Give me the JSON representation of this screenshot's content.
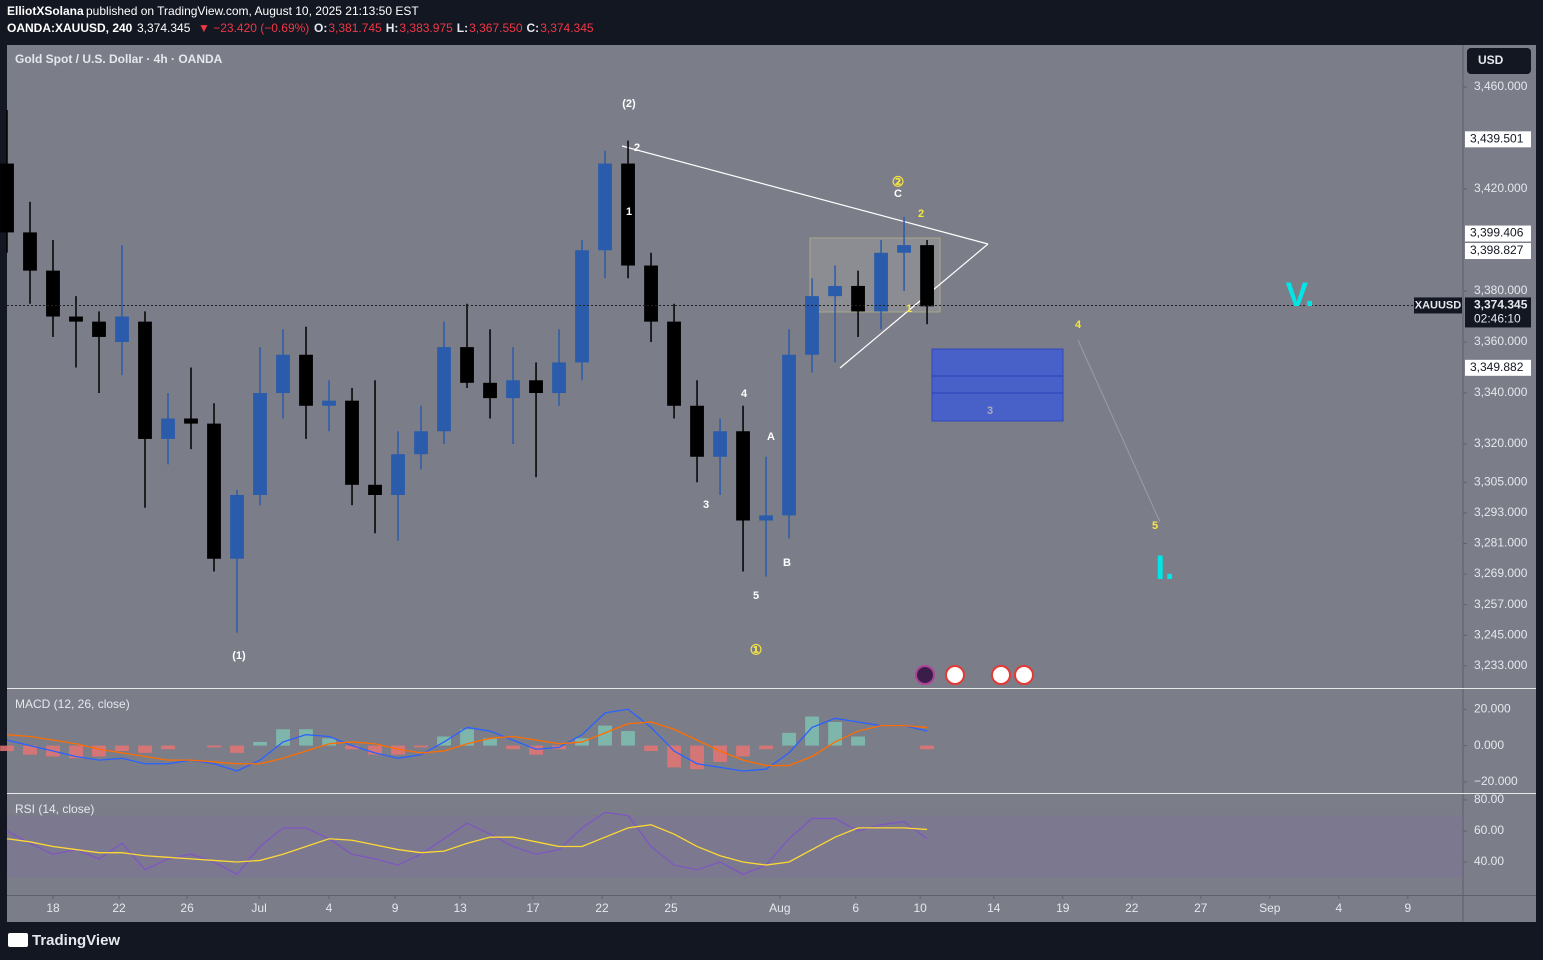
{
  "header": {
    "author": "ElliotXSolana",
    "published": "published on TradingView.com, August 10, 2025 21:13:50 EST",
    "symbol": "OANDA:XAUUSD, 240",
    "last": "3,374.345",
    "change": "▼ −23.420 (−0.69%)",
    "ohlc": [
      {
        "label": "O:",
        "value": "3,381.745"
      },
      {
        "label": "H:",
        "value": "3,383.975"
      },
      {
        "label": "L:",
        "value": "3,367.550"
      },
      {
        "label": "C:",
        "value": "3,374.345"
      }
    ]
  },
  "currency": "USD",
  "footer": "TradingView",
  "chart_data": [
    {
      "type": "candlestick",
      "title": "Gold Spot / U.S. Dollar · 4h · OANDA",
      "up_color": "#2b5cab",
      "down_color": "#000000",
      "open": [
        3430,
        3403,
        3388,
        3370,
        3368,
        3360,
        3368,
        3322,
        3330,
        3328,
        3275,
        3300,
        3340,
        3355,
        3335,
        3337,
        3304,
        3300,
        3316,
        3325,
        3358,
        3344,
        3338,
        3345,
        3340,
        3352,
        3396,
        3430,
        3390,
        3368,
        3335,
        3315,
        3325,
        3290,
        3292,
        3355,
        3378,
        3382,
        3372,
        3395,
        3398
      ],
      "high": [
        3451,
        3415,
        3400,
        3378,
        3372,
        3398,
        3372,
        3340,
        3350,
        3336,
        3302,
        3358,
        3365,
        3366,
        3345,
        3342,
        3345,
        3325,
        3335,
        3368,
        3375,
        3365,
        3358,
        3352,
        3365,
        3400,
        3435,
        3439,
        3395,
        3375,
        3345,
        3330,
        3335,
        3315,
        3365,
        3385,
        3390,
        3388,
        3400,
        3409,
        3400
      ],
      "low": [
        3395,
        3375,
        3362,
        3350,
        3340,
        3347,
        3295,
        3312,
        3318,
        3270,
        3246,
        3296,
        3330,
        3322,
        3325,
        3296,
        3285,
        3282,
        3310,
        3320,
        3342,
        3330,
        3320,
        3307,
        3335,
        3345,
        3385,
        3385,
        3360,
        3330,
        3305,
        3300,
        3270,
        3268,
        3283,
        3348,
        3352,
        3362,
        3365,
        3380,
        3367
      ],
      "close": [
        3403,
        3388,
        3370,
        3368,
        3362,
        3370,
        3322,
        3330,
        3328,
        3275,
        3300,
        3340,
        3355,
        3335,
        3337,
        3304,
        3300,
        3316,
        3325,
        3358,
        3344,
        3338,
        3345,
        3340,
        3352,
        3396,
        3430,
        3390,
        3368,
        3335,
        3315,
        3325,
        3290,
        3292,
        3355,
        3378,
        3382,
        3372,
        3395,
        3398,
        3374
      ],
      "xlim": [
        0,
        63.3
      ],
      "xticks": [
        {
          "value": 2,
          "label": "18"
        },
        {
          "value": 4.87,
          "label": "22"
        },
        {
          "value": 7.83,
          "label": "26"
        },
        {
          "value": 10.96,
          "label": "Jul"
        },
        {
          "value": 14,
          "label": "4"
        },
        {
          "value": 16.87,
          "label": "9"
        },
        {
          "value": 19.7,
          "label": "13"
        },
        {
          "value": 22.87,
          "label": "17"
        },
        {
          "value": 25.87,
          "label": "22"
        },
        {
          "value": 28.87,
          "label": "25"
        },
        {
          "value": 33.6,
          "label": "Aug"
        },
        {
          "value": 36.9,
          "label": "6"
        },
        {
          "value": 39.7,
          "label": "10"
        },
        {
          "value": 42.9,
          "label": "14"
        },
        {
          "value": 45.9,
          "label": "19"
        },
        {
          "value": 48.9,
          "label": "22"
        },
        {
          "value": 51.9,
          "label": "27"
        },
        {
          "value": 54.9,
          "label": "Sep"
        },
        {
          "value": 57.9,
          "label": "4"
        },
        {
          "value": 60.9,
          "label": "9"
        }
      ],
      "ylim": [
        3224.3,
        3476.5
      ],
      "yticks": [
        {
          "value": 3460,
          "label": "3,460.000"
        },
        {
          "value": 3420,
          "label": "3,420.000"
        },
        {
          "value": 3380,
          "label": "3,380.000"
        },
        {
          "value": 3360,
          "label": "3,360.000"
        },
        {
          "value": 3340,
          "label": "3,340.000"
        },
        {
          "value": 3320,
          "label": "3,320.000"
        },
        {
          "value": 3305,
          "label": "3,305.000"
        },
        {
          "value": 3293,
          "label": "3,293.000"
        },
        {
          "value": 3281,
          "label": "3,281.000"
        },
        {
          "value": 3269,
          "label": "3,269.000"
        },
        {
          "value": 3257,
          "label": "3,257.000"
        },
        {
          "value": 3245,
          "label": "3,245.000"
        },
        {
          "value": 3233,
          "label": "3,233.000"
        }
      ],
      "price_labels": [
        {
          "value": 3439.501,
          "label": "3,439.501"
        },
        {
          "value": 3399.406,
          "label": "3,399.406"
        },
        {
          "value": 3398.827,
          "label": "3,398.827"
        },
        {
          "value": 3349.882,
          "label": "3,349.882"
        }
      ],
      "last_price": {
        "name": "XAUUSD",
        "value": 3374.345,
        "label": "3,374.345",
        "countdown": "02:46:10"
      },
      "annotations": [
        "(2)",
        "2",
        "1",
        "4",
        "A",
        "3",
        "B",
        "5",
        "(1)",
        "①",
        "②",
        "C",
        "2",
        "1",
        "4",
        "5",
        "3",
        "V.",
        "I."
      ]
    },
    {
      "type": "line",
      "title": "MACD (12, 26, close)",
      "series": [
        {
          "name": "MACD",
          "color": "#2962ff",
          "values": [
            3,
            0,
            -3,
            -6,
            -8,
            -7,
            -10,
            -10,
            -8,
            -10,
            -14,
            -8,
            2,
            6,
            5,
            0,
            -4,
            -7,
            -5,
            2,
            10,
            8,
            3,
            -2,
            -1,
            6,
            18,
            20,
            10,
            -3,
            -10,
            -12,
            -14,
            -13,
            -4,
            10,
            15,
            13,
            11,
            11,
            8
          ]
        },
        {
          "name": "Signal",
          "color": "#ff6d00",
          "values": [
            6,
            5,
            3,
            1,
            -2,
            -4,
            -6,
            -8,
            -8,
            -9,
            -10,
            -10,
            -7,
            -3,
            1,
            2,
            1,
            -2,
            -4,
            -3,
            1,
            4,
            5,
            3,
            1,
            2,
            7,
            12,
            13,
            9,
            3,
            -3,
            -8,
            -11,
            -11,
            -6,
            2,
            8,
            11,
            11,
            10
          ]
        }
      ],
      "histogram": {
        "name": "Histogram",
        "up_color": "#7fbfb2",
        "down_color": "#e57373",
        "values": [
          -3,
          -5,
          -6,
          -7,
          -6,
          -3,
          -4,
          -2,
          0,
          -1,
          -4,
          2,
          9,
          9,
          4,
          -2,
          -5,
          -5,
          -1,
          5,
          9,
          4,
          -2,
          -5,
          -2,
          4,
          11,
          8,
          -3,
          -12,
          -13,
          -9,
          -6,
          -2,
          7,
          16,
          13,
          5,
          0,
          0,
          -2
        ]
      },
      "ylim": [
        -26.1,
        30.6
      ],
      "yticks": [
        {
          "value": 20,
          "label": "20.000"
        },
        {
          "value": 0,
          "label": "0.000"
        },
        {
          "value": -20,
          "label": "−20.000"
        }
      ]
    },
    {
      "type": "line",
      "title": "RSI (14, close)",
      "series": [
        {
          "name": "RSI",
          "color": "#7e57c2",
          "values": [
            60,
            52,
            45,
            48,
            42,
            52,
            35,
            42,
            45,
            40,
            32,
            50,
            62,
            62,
            55,
            45,
            42,
            38,
            45,
            55,
            65,
            58,
            50,
            45,
            48,
            62,
            72,
            70,
            50,
            38,
            35,
            40,
            32,
            38,
            55,
            68,
            68,
            60,
            64,
            66,
            55
          ]
        },
        {
          "name": "RSI-based MA",
          "color": "#fdd835",
          "values": [
            55,
            53,
            50,
            48,
            46,
            46,
            44,
            43,
            42,
            41,
            40,
            41,
            45,
            50,
            55,
            54,
            51,
            48,
            46,
            47,
            52,
            56,
            56,
            53,
            50,
            50,
            56,
            62,
            64,
            58,
            50,
            44,
            40,
            38,
            40,
            48,
            56,
            62,
            62,
            62,
            61
          ]
        }
      ],
      "band": [
        30,
        70
      ],
      "ylim": [
        18.7,
        83.2
      ],
      "yticks": [
        {
          "value": 80,
          "label": "80.00"
        },
        {
          "value": 60,
          "label": "60.00"
        },
        {
          "value": 40,
          "label": "40.00"
        }
      ]
    }
  ]
}
